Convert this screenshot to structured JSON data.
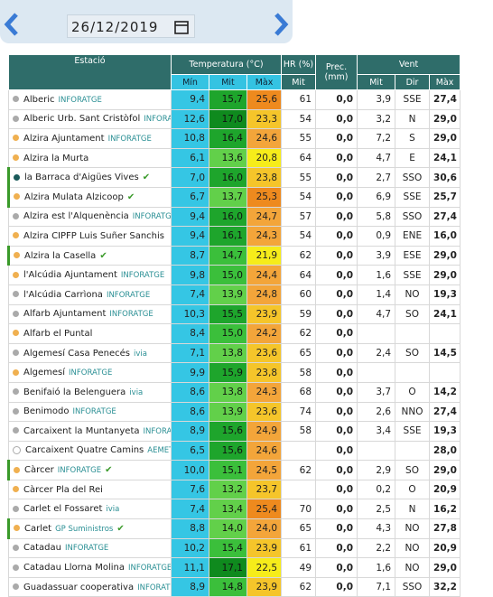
{
  "date": "26/12/2019",
  "table": {
    "header": {
      "station": "Estació",
      "temperature": "Temperatura (°C)",
      "humidity": "HR (%)",
      "precipitation": "Prec. (mm)",
      "wind": "Vent",
      "sub": {
        "t_min": "Mín",
        "t_mit": "Mit",
        "t_max": "Màx",
        "hr_mit": "Mit",
        "w_mit": "Mit",
        "w_dir": "Dir",
        "w_max": "Màx"
      }
    },
    "rows": [
      {
        "dot": "#aaaaaa",
        "name": "Alberic",
        "source": "INFORATGE",
        "check": false,
        "cells": [
          "9,4",
          "15,7",
          "25,6",
          "61",
          "0,0",
          "3,9",
          "SSE",
          "27,4"
        ]
      },
      {
        "dot": "#aaaaaa",
        "name": "Alberic Urb. Sant Cristòfol",
        "source": "INFORATGE",
        "check": false,
        "cells": [
          "12,6",
          "17,0",
          "23,3",
          "54",
          "0,0",
          "3,2",
          "N",
          "29,0"
        ]
      },
      {
        "dot": "#f0b050",
        "name": "Alzira Ajuntament",
        "source": "INFORATGE",
        "check": false,
        "cells": [
          "10,8",
          "16,4",
          "24,6",
          "55",
          "0,0",
          "7,2",
          "S",
          "29,0"
        ]
      },
      {
        "dot": "#f0b050",
        "name": "Alzira la Murta",
        "source": null,
        "check": false,
        "cells": [
          "6,1",
          "13,6",
          "20,8",
          "64",
          "0,0",
          "4,7",
          "E",
          "24,1"
        ]
      },
      {
        "dot": "#1a5a5a",
        "name": "la Barraca d'Aigües Vives",
        "source": null,
        "check": true,
        "cells": [
          "7,0",
          "16,0",
          "23,8",
          "55",
          "0,0",
          "2,7",
          "SSO",
          "30,6"
        ]
      },
      {
        "dot": "#f0b050",
        "name": "Alzira Mulata Alzicoop",
        "source": null,
        "check": true,
        "cells": [
          "6,7",
          "13,7",
          "25,3",
          "54",
          "0,0",
          "6,9",
          "SSE",
          "25,7"
        ]
      },
      {
        "dot": "#aaaaaa",
        "name": "Alzira est l'Alquenència",
        "source": "INFORATGE",
        "check": false,
        "cells": [
          "9,4",
          "16,0",
          "24,7",
          "57",
          "0,0",
          "5,8",
          "SSO",
          "27,4"
        ]
      },
      {
        "dot": "#f0b050",
        "name": "Alzira CIPFP Luis Suñer Sanchis",
        "source": null,
        "check": false,
        "cells": [
          "9,4",
          "16,1",
          "24,3",
          "54",
          "0,0",
          "0,9",
          "ENE",
          "16,0"
        ]
      },
      {
        "dot": "#f0b050",
        "name": "Alzira la Casella",
        "source": null,
        "check": true,
        "cells": [
          "8,7",
          "14,7",
          "21,9",
          "62",
          "0,0",
          "3,9",
          "ESE",
          "29,0"
        ]
      },
      {
        "dot": "#f0b050",
        "name": "l'Alcúdia Ajuntament",
        "source": "INFORATGE",
        "check": false,
        "cells": [
          "9,8",
          "15,0",
          "24,4",
          "64",
          "0,0",
          "1,6",
          "SSE",
          "29,0"
        ]
      },
      {
        "dot": "#aaaaaa",
        "name": "l'Alcúdia Carrìona",
        "source": "INFORATGE",
        "check": false,
        "cells": [
          "7,4",
          "13,9",
          "24,8",
          "60",
          "0,0",
          "1,4",
          "NO",
          "19,3"
        ]
      },
      {
        "dot": "#aaaaaa",
        "name": "Alfarb Ajuntament",
        "source": "INFORATGE",
        "check": false,
        "cells": [
          "10,3",
          "15,5",
          "23,9",
          "59",
          "0,0",
          "4,7",
          "SO",
          "24,1"
        ]
      },
      {
        "dot": "#f0b050",
        "name": "Alfarb el Puntal",
        "source": null,
        "check": false,
        "cells": [
          "8,4",
          "15,0",
          "24,2",
          "62",
          "0,0",
          null,
          null,
          null
        ]
      },
      {
        "dot": "#aaaaaa",
        "name": "Algemesí Casa Penecés",
        "source": "ivia",
        "check": false,
        "cells": [
          "7,1",
          "13,8",
          "23,6",
          "65",
          "0,0",
          "2,4",
          "SO",
          "14,5"
        ]
      },
      {
        "dot": "#f0b050",
        "name": "Algemesí",
        "source": "INFORATGE",
        "check": false,
        "cells": [
          "9,9",
          "15,9",
          "23,8",
          "58",
          "0,0",
          null,
          null,
          null
        ]
      },
      {
        "dot": "#aaaaaa",
        "name": "Benifaió la Belenguera",
        "source": "ivia",
        "check": false,
        "cells": [
          "8,6",
          "13,8",
          "24,3",
          "68",
          "0,0",
          "3,7",
          "O",
          "14,2"
        ]
      },
      {
        "dot": "#aaaaaa",
        "name": "Benimodo",
        "source": "INFORATGE",
        "check": false,
        "cells": [
          "8,6",
          "13,9",
          "23,6",
          "74",
          "0,0",
          "2,6",
          "NNO",
          "27,4"
        ]
      },
      {
        "dot": "#aaaaaa",
        "name": "Carcaixent la Muntanyeta",
        "source": "INFORATGE",
        "check": false,
        "cells": [
          "8,9",
          "15,6",
          "24,9",
          "58",
          "0,0",
          "3,4",
          "SSE",
          "19,3"
        ]
      },
      {
        "dot": "#ffffff",
        "name": "Carcaixent Quatre Camins",
        "source": "AEMET",
        "check": false,
        "cells": [
          "6,5",
          "15,6",
          "24,6",
          null,
          "0,0",
          null,
          null,
          "28,0"
        ]
      },
      {
        "dot": "#f0b050",
        "name": "Càrcer",
        "source": "INFORATGE",
        "check": true,
        "cells": [
          "10,0",
          "15,1",
          "24,5",
          "62",
          "0,0",
          "2,9",
          "SO",
          "29,0"
        ]
      },
      {
        "dot": "#f0b050",
        "name": "Càrcer Pla del Rei",
        "source": null,
        "check": false,
        "cells": [
          "7,6",
          "13,2",
          "23,7",
          null,
          "0,0",
          "0,2",
          "O",
          "20,9"
        ]
      },
      {
        "dot": "#aaaaaa",
        "name": "Carlet el Fossaret",
        "source": "ivia",
        "check": false,
        "cells": [
          "7,4",
          "13,4",
          "25,4",
          "70",
          "0,0",
          "2,5",
          "N",
          "16,2"
        ]
      },
      {
        "dot": "#f0b050",
        "name": "Carlet",
        "source": "GP Suministros",
        "check": true,
        "cells": [
          "8,8",
          "14,0",
          "24,0",
          "65",
          "0,0",
          "4,3",
          "NO",
          "27,8"
        ]
      },
      {
        "dot": "#aaaaaa",
        "name": "Catadau",
        "source": "INFORATGE",
        "check": false,
        "cells": [
          "10,2",
          "15,4",
          "23,9",
          "61",
          "0,0",
          "2,2",
          "NO",
          "20,9"
        ]
      },
      {
        "dot": "#aaaaaa",
        "name": "Catadau Llorna Molina",
        "source": "INFORATGE",
        "check": false,
        "cells": [
          "11,1",
          "17,1",
          "22,5",
          "49",
          "0,0",
          "1,6",
          "NO",
          "29,0"
        ]
      },
      {
        "dot": "#aaaaaa",
        "name": "Guadassuar cooperativa",
        "source": "INFORATGE",
        "check": false,
        "cells": [
          "8,9",
          "14,8",
          "23,9",
          "62",
          "0,0",
          "7,1",
          "SSO",
          "32,2"
        ]
      }
    ]
  }
}
